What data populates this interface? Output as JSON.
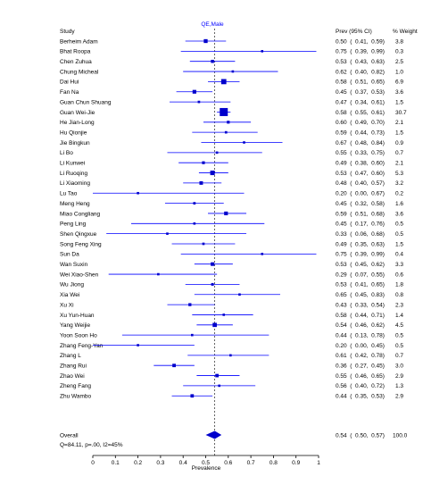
{
  "chart_data": {
    "type": "forest",
    "group_label": "QE,Male",
    "columns": {
      "study": "Study",
      "ci": "Prev (95% CI)",
      "weight": "% Weight"
    },
    "xlabel": "Prevalence",
    "xlim": [
      0,
      1
    ],
    "x_ticks": [
      0,
      0.1,
      0.2,
      0.3,
      0.4,
      0.5,
      0.6,
      0.7,
      0.8,
      0.9,
      1
    ],
    "x_tick_labels": [
      "0",
      "0.1",
      "0.2",
      "0.3",
      "0.4",
      "0.5",
      "0.6",
      "0.7",
      "0.8",
      "0.9",
      "1"
    ],
    "rows": [
      {
        "study": "Berheim Adam",
        "est": 0.5,
        "lo": 0.41,
        "hi": 0.59,
        "ci_text": "0.50  (  0.41,  0.59)",
        "weight": "3.8"
      },
      {
        "study": "Bhat Roopa",
        "est": 0.75,
        "lo": 0.39,
        "hi": 0.99,
        "ci_text": "0.75  (  0.39,  0.99)",
        "weight": "0.3"
      },
      {
        "study": "Chen Zuhua",
        "est": 0.53,
        "lo": 0.43,
        "hi": 0.63,
        "ci_text": "0.53  (  0.43,  0.63)",
        "weight": "2.5"
      },
      {
        "study": "Chung Micheal",
        "est": 0.62,
        "lo": 0.4,
        "hi": 0.82,
        "ci_text": "0.62  (  0.40,  0.82)",
        "weight": "1.0"
      },
      {
        "study": "Dai Hui",
        "est": 0.58,
        "lo": 0.51,
        "hi": 0.65,
        "ci_text": "0.58  (  0.51,  0.65)",
        "weight": "6.9"
      },
      {
        "study": "Fan Na",
        "est": 0.45,
        "lo": 0.37,
        "hi": 0.53,
        "ci_text": "0.45  (  0.37,  0.53)",
        "weight": "3.6"
      },
      {
        "study": "Guan Chun Shuang",
        "est": 0.47,
        "lo": 0.34,
        "hi": 0.61,
        "ci_text": "0.47  (  0.34,  0.61)",
        "weight": "1.5"
      },
      {
        "study": "Guan Wei-Jie",
        "est": 0.58,
        "lo": 0.55,
        "hi": 0.61,
        "ci_text": "0.58  (  0.55,  0.61)",
        "weight": "30.7"
      },
      {
        "study": "He Jian-Long",
        "est": 0.6,
        "lo": 0.49,
        "hi": 0.7,
        "ci_text": "0.60  (  0.49,  0.70)",
        "weight": "2.1"
      },
      {
        "study": "Hu Qionjie",
        "est": 0.59,
        "lo": 0.44,
        "hi": 0.73,
        "ci_text": "0.59  (  0.44,  0.73)",
        "weight": "1.5"
      },
      {
        "study": "Jie Bingkun",
        "est": 0.67,
        "lo": 0.48,
        "hi": 0.84,
        "ci_text": "0.67  (  0.48,  0.84)",
        "weight": "0.9"
      },
      {
        "study": "Li Bo",
        "est": 0.55,
        "lo": 0.33,
        "hi": 0.75,
        "ci_text": "0.55  (  0.33,  0.75)",
        "weight": "0.7"
      },
      {
        "study": "Li Kunwei",
        "est": 0.49,
        "lo": 0.38,
        "hi": 0.6,
        "ci_text": "0.49  (  0.38,  0.60)",
        "weight": "2.1"
      },
      {
        "study": "Li Ruoqing",
        "est": 0.53,
        "lo": 0.47,
        "hi": 0.6,
        "ci_text": "0.53  (  0.47,  0.60)",
        "weight": "5.3"
      },
      {
        "study": "Li Xiaoming",
        "est": 0.48,
        "lo": 0.4,
        "hi": 0.57,
        "ci_text": "0.48  (  0.40,  0.57)",
        "weight": "3.2"
      },
      {
        "study": "Lu Tao",
        "est": 0.2,
        "lo": 0.0,
        "hi": 0.67,
        "ci_text": "0.20  (  0.00,  0.67)",
        "weight": "0.2"
      },
      {
        "study": "Meng Heng",
        "est": 0.45,
        "lo": 0.32,
        "hi": 0.58,
        "ci_text": "0.45  (  0.32,  0.58)",
        "weight": "1.6"
      },
      {
        "study": "Miao Congliang",
        "est": 0.59,
        "lo": 0.51,
        "hi": 0.68,
        "ci_text": "0.59  (  0.51,  0.68)",
        "weight": "3.6"
      },
      {
        "study": "Peng Ling",
        "est": 0.45,
        "lo": 0.17,
        "hi": 0.76,
        "ci_text": "0.45  (  0.17,  0.76)",
        "weight": "0.5"
      },
      {
        "study": "Shen Qingxue",
        "est": 0.33,
        "lo": 0.06,
        "hi": 0.68,
        "ci_text": "0.33  (  0.06,  0.68)",
        "weight": "0.5"
      },
      {
        "study": "Song Feng Xing",
        "est": 0.49,
        "lo": 0.35,
        "hi": 0.63,
        "ci_text": "0.49  (  0.35,  0.63)",
        "weight": "1.5"
      },
      {
        "study": "Sun Da",
        "est": 0.75,
        "lo": 0.39,
        "hi": 0.99,
        "ci_text": "0.75  (  0.39,  0.99)",
        "weight": "0.4"
      },
      {
        "study": "Wan Suxin",
        "est": 0.53,
        "lo": 0.45,
        "hi": 0.62,
        "ci_text": "0.53  (  0.45,  0.62)",
        "weight": "3.3"
      },
      {
        "study": "Wei Xiao-Shen",
        "est": 0.29,
        "lo": 0.07,
        "hi": 0.55,
        "ci_text": "0.29  (  0.07,  0.55)",
        "weight": "0.6"
      },
      {
        "study": "Wu Jiong",
        "est": 0.53,
        "lo": 0.41,
        "hi": 0.65,
        "ci_text": "0.53  (  0.41,  0.65)",
        "weight": "1.8"
      },
      {
        "study": "Xia Wei",
        "est": 0.65,
        "lo": 0.45,
        "hi": 0.83,
        "ci_text": "0.65  (  0.45,  0.83)",
        "weight": "0.8"
      },
      {
        "study": "Xu Xi",
        "est": 0.43,
        "lo": 0.33,
        "hi": 0.54,
        "ci_text": "0.43  (  0.33,  0.54)",
        "weight": "2.3"
      },
      {
        "study": "Xu Yun-Huan",
        "est": 0.58,
        "lo": 0.44,
        "hi": 0.71,
        "ci_text": "0.58  (  0.44,  0.71)",
        "weight": "1.4"
      },
      {
        "study": "Yang Weijie",
        "est": 0.54,
        "lo": 0.46,
        "hi": 0.62,
        "ci_text": "0.54  (  0.46,  0.62)",
        "weight": "4.5"
      },
      {
        "study": "Yoon Soon Ho",
        "est": 0.44,
        "lo": 0.13,
        "hi": 0.78,
        "ci_text": "0.44  (  0.13,  0.78)",
        "weight": "0.5"
      },
      {
        "study": "Zhang Feng-Yan",
        "est": 0.2,
        "lo": 0.0,
        "hi": 0.45,
        "ci_text": "0.20  (  0.00,  0.45)",
        "weight": "0.5"
      },
      {
        "study": "Zhang L",
        "est": 0.61,
        "lo": 0.42,
        "hi": 0.78,
        "ci_text": "0.61  (  0.42,  0.78)",
        "weight": "0.7"
      },
      {
        "study": "Zhang Rui",
        "est": 0.36,
        "lo": 0.27,
        "hi": 0.45,
        "ci_text": "0.36  (  0.27,  0.45)",
        "weight": "3.0"
      },
      {
        "study": "Zhao Wei",
        "est": 0.55,
        "lo": 0.46,
        "hi": 0.65,
        "ci_text": "0.55  (  0.46,  0.65)",
        "weight": "2.9"
      },
      {
        "study": "Zheng Fang",
        "est": 0.56,
        "lo": 0.4,
        "hi": 0.72,
        "ci_text": "0.56  (  0.40,  0.72)",
        "weight": "1.3"
      },
      {
        "study": "Zhu Wambo",
        "est": 0.44,
        "lo": 0.35,
        "hi": 0.53,
        "ci_text": "0.44  (  0.35,  0.53)",
        "weight": "2.9"
      }
    ],
    "overall": {
      "label": "Overall",
      "est": 0.54,
      "lo": 0.5,
      "hi": 0.57,
      "ci_text": "0.54  (  0.50,  0.57)",
      "weight": "100.0"
    },
    "heterogeneity": "Q=84.11, p=.00, I2=45%",
    "colors": {
      "marker": "#0000cc",
      "line": "#0000ff",
      "text": "#000000",
      "reference": "#000000"
    }
  }
}
